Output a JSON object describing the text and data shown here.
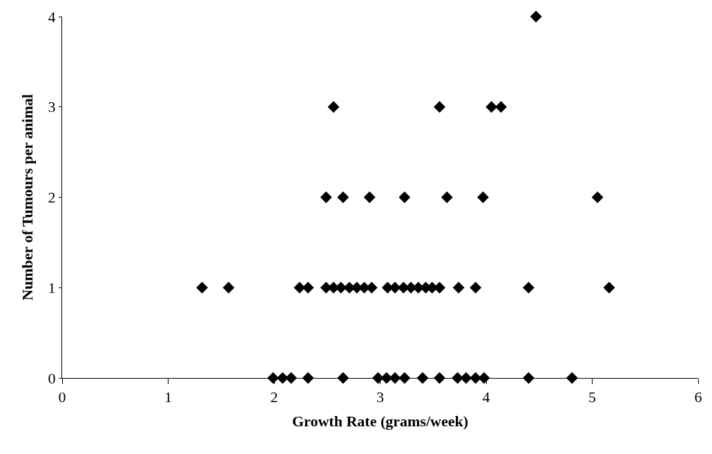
{
  "chart_data": {
    "type": "scatter",
    "xlabel": "Growth Rate (grams/week)",
    "ylabel": "Number of Tumours per animal",
    "series": [
      {
        "color": "#000000",
        "x": [
          1.32,
          1.57,
          2.24,
          2.32,
          2.49,
          2.56,
          2.63,
          2.71,
          2.78,
          2.85,
          2.92,
          3.07,
          3.14,
          3.22,
          3.29,
          3.36,
          3.43,
          3.49,
          3.56,
          3.74,
          3.9,
          4.4,
          5.16,
          1.99,
          2.08,
          2.16,
          2.32,
          2.65,
          2.98,
          3.06,
          3.14,
          3.23,
          3.4,
          3.56,
          3.73,
          3.81,
          3.9,
          3.98,
          4.4,
          4.81,
          2.56,
          3.56,
          4.05,
          4.14,
          4.47,
          2.49,
          2.65,
          2.9,
          3.23,
          3.63,
          3.97,
          5.05
        ],
        "values": [
          1,
          1,
          1,
          1,
          1,
          1,
          1,
          1,
          1,
          1,
          1,
          1,
          1,
          1,
          1,
          1,
          1,
          1,
          1,
          1,
          1,
          1,
          1,
          0,
          0,
          0,
          0,
          0,
          0,
          0,
          0,
          0,
          0,
          0,
          0,
          0,
          0,
          0,
          0,
          0,
          3,
          3,
          3,
          3,
          4,
          2,
          2,
          2,
          2,
          2,
          2,
          2
        ]
      }
    ],
    "xlim": [
      0,
      6
    ],
    "xticks": [
      0,
      1,
      2,
      3,
      4,
      5,
      6
    ],
    "ylim": [
      0,
      4
    ],
    "yticks": [
      0,
      1,
      2,
      3,
      4
    ],
    "marker": "diamond"
  }
}
